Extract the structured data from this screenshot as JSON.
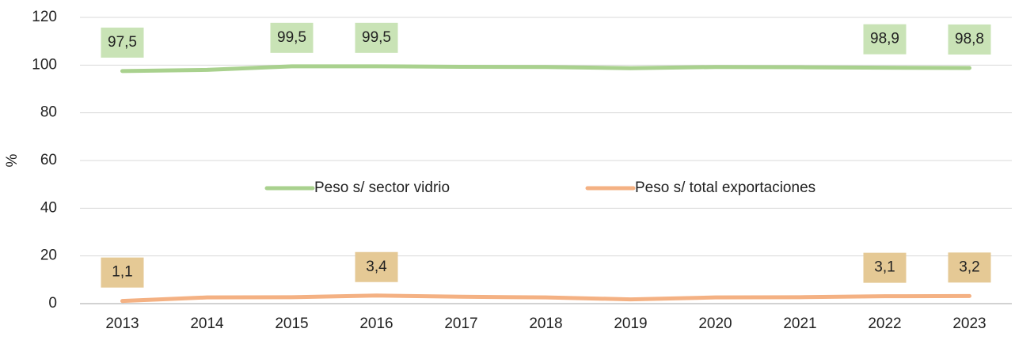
{
  "chart_data": {
    "type": "line",
    "y_label": "%",
    "categories": [
      "2013",
      "2014",
      "2015",
      "2016",
      "2017",
      "2018",
      "2019",
      "2020",
      "2021",
      "2022",
      "2023"
    ],
    "series": [
      {
        "name": "Peso s/ sector vidrio",
        "color": "#a9d18e",
        "label_color": "#c9e3b6",
        "values": [
          97.5,
          98,
          99.5,
          99.5,
          99.3,
          99.2,
          98.7,
          99.2,
          99.1,
          98.9,
          98.8
        ],
        "value_labels": [
          "97,5",
          null,
          "99,5",
          "99,5",
          null,
          null,
          null,
          null,
          null,
          "98,9",
          "98,8"
        ]
      },
      {
        "name": "Peso s/ total exportaciones",
        "color": "#f4b183",
        "label_color": "#e5c995",
        "values": [
          1.1,
          2.6,
          2.7,
          3.4,
          2.9,
          2.6,
          1.8,
          2.6,
          2.7,
          3.1,
          3.2
        ],
        "value_labels": [
          "1,1",
          null,
          null,
          "3,4",
          null,
          null,
          null,
          null,
          null,
          "3,1",
          "3,2"
        ]
      }
    ],
    "ylim": [
      0,
      120
    ],
    "yticks": [
      0,
      20,
      40,
      60,
      80,
      100,
      120
    ],
    "grid": true,
    "legend": "center"
  }
}
